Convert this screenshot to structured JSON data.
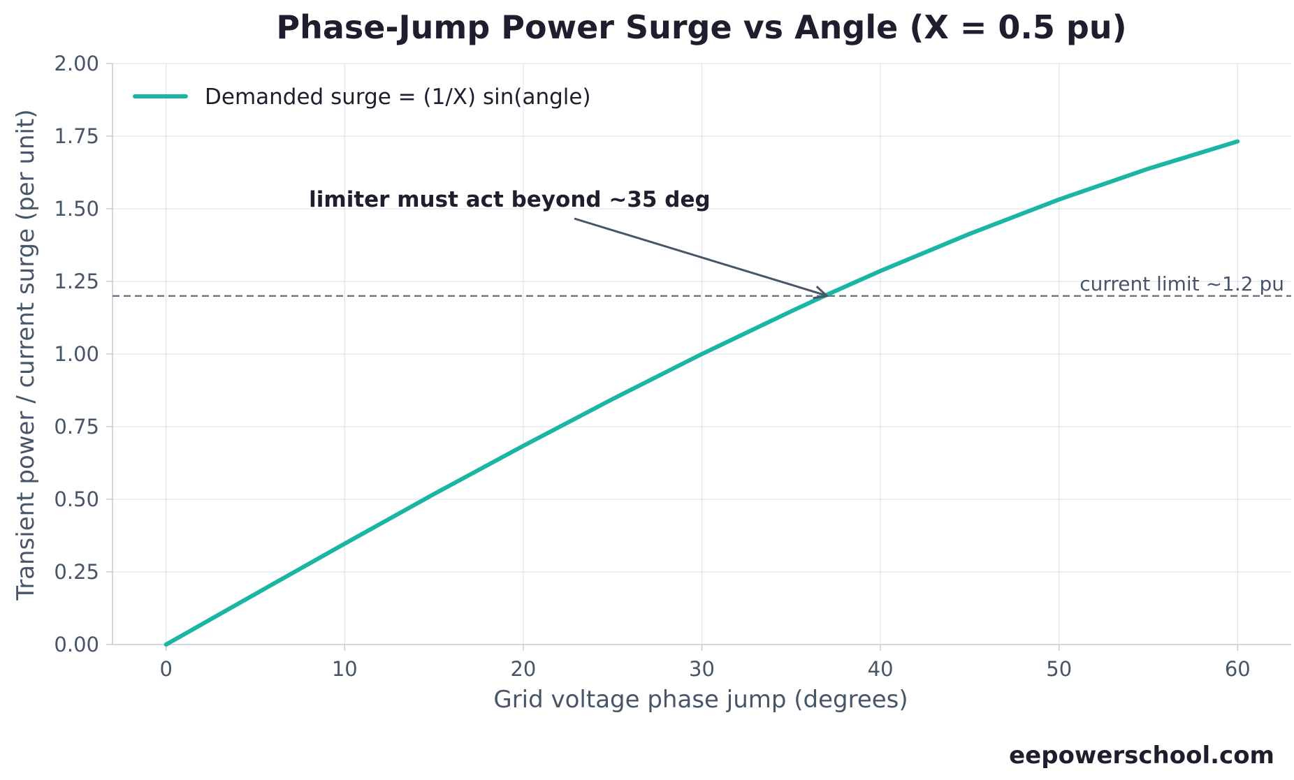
{
  "chart_data": {
    "type": "line",
    "title": "Phase-Jump Power Surge vs Angle (X = 0.5 pu)",
    "xlabel": "Grid voltage phase jump (degrees)",
    "ylabel": "Transient power / current surge (per unit)",
    "xlim": [
      -3,
      63
    ],
    "ylim": [
      0,
      2.0
    ],
    "x_ticks": [
      0,
      10,
      20,
      30,
      40,
      50,
      60
    ],
    "y_ticks": [
      0.0,
      0.25,
      0.5,
      0.75,
      1.0,
      1.25,
      1.5,
      1.75,
      2.0
    ],
    "y_tick_labels": [
      "0.00",
      "0.25",
      "0.50",
      "0.75",
      "1.00",
      "1.25",
      "1.50",
      "1.75",
      "2.00"
    ],
    "grid": true,
    "legend_position": "top-left",
    "series": [
      {
        "name": "Demanded surge = (1/X) sin(angle)",
        "color": "#1ab5a3",
        "x": [
          0,
          5,
          10,
          15,
          20,
          25,
          30,
          35,
          37,
          40,
          45,
          50,
          55,
          60
        ],
        "y": [
          0.0,
          0.174,
          0.347,
          0.518,
          0.684,
          0.845,
          1.0,
          1.147,
          1.204,
          1.286,
          1.414,
          1.532,
          1.638,
          1.732
        ]
      }
    ],
    "reference_line": {
      "y": 1.2,
      "label": "current limit ~1.2 pu",
      "color": "#6b7280",
      "style": "dashed"
    },
    "annotation": {
      "text": "limiter must act beyond ~35 deg",
      "text_x": 8,
      "text_y": 1.5,
      "arrow_tip_x": 37,
      "arrow_tip_y": 1.2
    },
    "watermark": "eepowerschool.com"
  },
  "colors": {
    "title": "#1e1e2e",
    "axis_text": "#475569",
    "grid": "#e2e4ee",
    "axis_line": "#c8cad8"
  }
}
